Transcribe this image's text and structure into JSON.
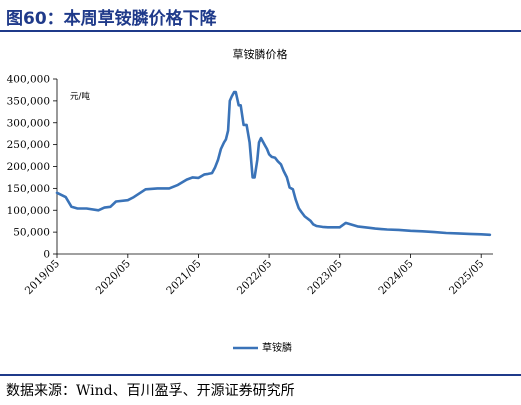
{
  "figure": {
    "title": "图60：本周草铵膦价格下降",
    "source": "数据来源：Wind、百川盈孚、开源证券研究所"
  },
  "chart_data": {
    "type": "line",
    "title": "草铵膦价格",
    "unit": "元/吨",
    "xlabel": "",
    "ylabel": "",
    "ylim": [
      0,
      400000
    ],
    "yticks": [
      0,
      50000,
      100000,
      150000,
      200000,
      250000,
      300000,
      350000,
      400000
    ],
    "ytick_labels": [
      "0",
      "50,000",
      "100,000",
      "150,000",
      "200,000",
      "250,000",
      "300,000",
      "350,000",
      "400,000"
    ],
    "xlim": [
      "2019-05",
      "2025-07"
    ],
    "xticks": [
      "2019-05",
      "2020-05",
      "2021-05",
      "2022-05",
      "2023-05",
      "2024-05",
      "2025-05"
    ],
    "xtick_labels": [
      "2019/05",
      "2020/05",
      "2021/05",
      "2022/05",
      "2023/05",
      "2024/05",
      "2025/05"
    ],
    "grid": false,
    "legend": "bottom",
    "line_color": "#3a73b8",
    "series": [
      {
        "name": "草铵膦",
        "x": [
          "2019-05-01",
          "2019-06-15",
          "2019-07-15",
          "2019-08-15",
          "2019-10-01",
          "2019-12-01",
          "2020-01-01",
          "2020-02-01",
          "2020-03-01",
          "2020-05-01",
          "2020-06-01",
          "2020-08-01",
          "2020-10-01",
          "2020-12-01",
          "2021-01-15",
          "2021-03-01",
          "2021-04-01",
          "2021-05-01",
          "2021-06-01",
          "2021-06-20",
          "2021-07-10",
          "2021-07-25",
          "2021-08-10",
          "2021-08-25",
          "2021-09-10",
          "2021-09-20",
          "2021-10-01",
          "2021-10-10",
          "2021-10-20",
          "2021-11-01",
          "2021-11-10",
          "2021-11-25",
          "2021-12-05",
          "2021-12-20",
          "2022-01-05",
          "2022-01-20",
          "2022-02-05",
          "2022-02-15",
          "2022-03-01",
          "2022-03-10",
          "2022-03-20",
          "2022-04-01",
          "2022-04-10",
          "2022-04-20",
          "2022-05-01",
          "2022-05-15",
          "2022-06-01",
          "2022-06-15",
          "2022-07-01",
          "2022-07-15",
          "2022-08-01",
          "2022-08-15",
          "2022-09-01",
          "2022-09-15",
          "2022-10-01",
          "2022-10-15",
          "2022-11-01",
          "2022-12-01",
          "2022-12-15",
          "2023-01-01",
          "2023-02-01",
          "2023-03-01",
          "2023-04-01",
          "2023-05-01",
          "2023-06-01",
          "2023-08-01",
          "2023-10-01",
          "2023-11-01",
          "2023-12-01",
          "2024-01-01",
          "2024-03-01",
          "2024-05-01",
          "2024-07-01",
          "2024-09-01",
          "2024-11-01",
          "2025-01-01",
          "2025-03-01",
          "2025-05-01",
          "2025-06-15"
        ],
        "values": [
          140000,
          130000,
          108000,
          104000,
          104000,
          100000,
          106000,
          108000,
          120000,
          123000,
          130000,
          148000,
          150000,
          150000,
          158000,
          170000,
          175000,
          174000,
          182000,
          183000,
          185000,
          197000,
          215000,
          240000,
          255000,
          262000,
          282000,
          350000,
          360000,
          370000,
          370000,
          340000,
          340000,
          295000,
          295000,
          255000,
          175000,
          175000,
          215000,
          255000,
          265000,
          255000,
          248000,
          240000,
          228000,
          222000,
          220000,
          212000,
          205000,
          190000,
          175000,
          152000,
          148000,
          125000,
          105000,
          96000,
          86000,
          76000,
          68000,
          64000,
          62000,
          61000,
          61000,
          61000,
          71000,
          63000,
          60000,
          58000,
          57000,
          56000,
          55000,
          53000,
          52000,
          50000,
          48000,
          47000,
          46000,
          45000,
          44000
        ]
      }
    ]
  }
}
